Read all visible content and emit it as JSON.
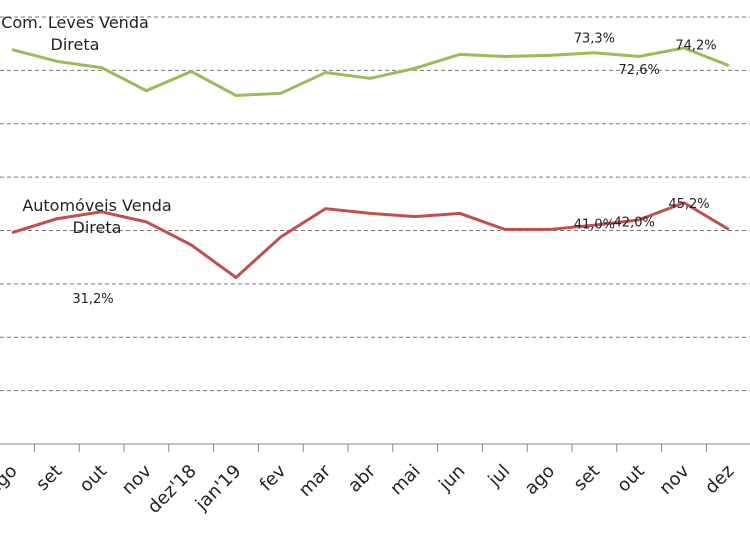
{
  "chart_data": {
    "type": "line",
    "categories": [
      "ago",
      "set",
      "out",
      "nov",
      "dez'18",
      "jan'19",
      "fev",
      "mar",
      "abr",
      "mai",
      "jun",
      "jul",
      "ago",
      "set",
      "out",
      "nov",
      "dez"
    ],
    "ylim": [
      0,
      80
    ],
    "yticks": [
      0,
      10,
      20,
      30,
      40,
      50,
      60,
      70,
      80
    ],
    "grid": true,
    "series": [
      {
        "name": "Com. Leves Venda Direta",
        "color": "#9bbb59",
        "values": [
          73.9,
          71.7,
          70.5,
          66.2,
          69.8,
          65.3,
          65.7,
          69.6,
          68.5,
          70.4,
          73.0,
          72.6,
          72.8,
          73.3,
          72.6,
          74.2,
          70.9
        ],
        "value_labels": [
          null,
          null,
          null,
          null,
          null,
          null,
          null,
          null,
          null,
          null,
          null,
          null,
          null,
          "73,3%",
          "72,6%",
          "74,2%",
          null
        ]
      },
      {
        "name": "Automóveis Venda Direta",
        "color": "#c0504d",
        "values": [
          39.6,
          42.2,
          43.5,
          41.6,
          37.3,
          31.2,
          38.8,
          44.1,
          43.2,
          42.6,
          43.2,
          40.2,
          40.2,
          41.0,
          42.0,
          45.2,
          40.2
        ],
        "value_labels": [
          null,
          null,
          null,
          null,
          null,
          "31,2%",
          null,
          null,
          null,
          null,
          null,
          null,
          null,
          "41,0%",
          "42,0%",
          "45,2%",
          null
        ]
      }
    ]
  }
}
